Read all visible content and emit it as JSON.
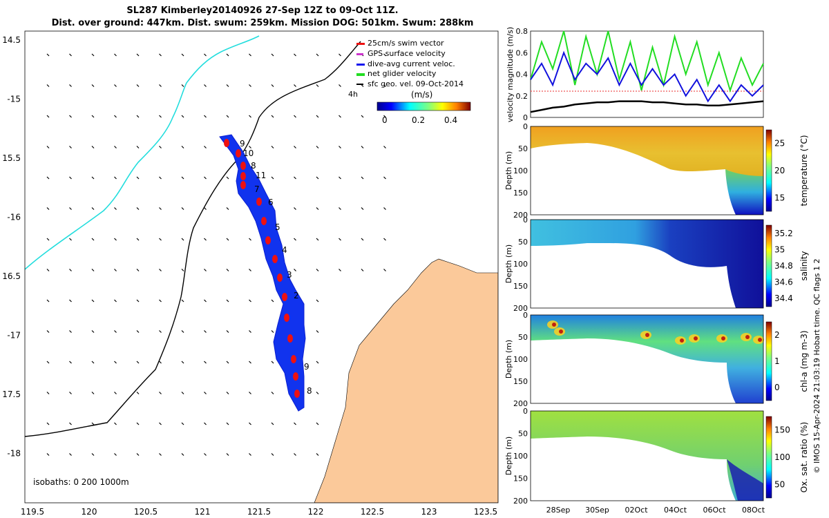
{
  "title_line1": "SL287 Kimberley20140926 27-Sep 12Z to 09-Oct 11Z.",
  "title_line2": "Dist. over ground: 447km. Dist. swum: 259km. Mission DOG: 501km. Swum: 288km",
  "colors": {
    "land": "#fbc99a",
    "track": "#1111ee",
    "swim": "#ee1111",
    "bathy_coast": "#000000",
    "cyan_isobath": "#22dddd"
  },
  "map": {
    "lon_ticks": [
      "119.5",
      "120",
      "120.5",
      "121",
      "121.5",
      "122",
      "122.5",
      "123",
      "123.5"
    ],
    "lat_ticks": [
      "14.5",
      "-15",
      "15.5",
      "-16",
      "16.5",
      "-17",
      "17.5",
      "-18"
    ],
    "legend": [
      "25cm/s swim vector",
      "GPS surface velocity",
      "dive-avg current veloc.",
      "net glider velocity",
      "sfc geo. vel. 09-Oct-2014"
    ],
    "legend_extra": "4h",
    "colorbar_label": "(m/s)",
    "colorbar_ticks": [
      "0",
      "0.2",
      "0.4"
    ],
    "isobaths": "isobaths: 0   200  1000m",
    "track_labels": [
      "9",
      "10",
      "8",
      "11",
      "7",
      "6",
      "5",
      "4",
      "3",
      "2",
      "9",
      "8"
    ]
  },
  "chart_data": [
    {
      "type": "line",
      "ylabel": "velocity magnitude (m/s)",
      "ylim": [
        0,
        0.8
      ],
      "y_ticks": [
        "0",
        "0.2",
        "0.4",
        "0.6",
        "0.8"
      ],
      "series": [
        {
          "color": "#22dd22",
          "values": [
            0.35,
            0.7,
            0.45,
            0.8,
            0.3,
            0.75,
            0.4,
            0.8,
            0.35,
            0.7,
            0.25,
            0.65,
            0.3,
            0.75,
            0.4,
            0.7,
            0.3,
            0.6,
            0.25,
            0.55,
            0.3,
            0.5
          ]
        },
        {
          "color": "#1111dd",
          "values": [
            0.35,
            0.5,
            0.3,
            0.6,
            0.35,
            0.5,
            0.4,
            0.55,
            0.3,
            0.5,
            0.3,
            0.45,
            0.3,
            0.4,
            0.2,
            0.35,
            0.15,
            0.3,
            0.15,
            0.3,
            0.2,
            0.3
          ]
        },
        {
          "color": "#000000",
          "values": [
            0.05,
            0.07,
            0.09,
            0.1,
            0.12,
            0.13,
            0.14,
            0.14,
            0.15,
            0.15,
            0.15,
            0.14,
            0.14,
            0.13,
            0.12,
            0.12,
            0.11,
            0.11,
            0.12,
            0.13,
            0.14,
            0.15
          ]
        }
      ]
    },
    {
      "type": "heatmap",
      "ylabel": "Depth (m)",
      "cbar_label": "temperature (°C)",
      "cbar_ticks": [
        "15",
        "20",
        "25"
      ]
    },
    {
      "type": "heatmap",
      "ylabel": "Depth (m)",
      "cbar_label": "salinity",
      "cbar_ticks": [
        "34.4",
        "34.6",
        "34.8",
        "35",
        "35.2"
      ]
    },
    {
      "type": "heatmap",
      "ylabel": "Depth (m)",
      "cbar_label": "chl-a (mg m-3)",
      "cbar_ticks": [
        "0",
        "1",
        "2"
      ]
    },
    {
      "type": "heatmap",
      "ylabel": "Depth (m)",
      "cbar_label": "Ox. sat. ratio (%)",
      "cbar_ticks": [
        "50",
        "100",
        "150"
      ]
    }
  ],
  "depth_ticks": [
    "0",
    "50",
    "100",
    "150",
    "200"
  ],
  "time_ticks": [
    "28Sep",
    "30Sep",
    "02Oct",
    "04Oct",
    "06Oct",
    "08Oct"
  ],
  "side_caption": "© IMOS 15-Apr-2024 21:03:19 Hobart time. QC flags 1  2"
}
